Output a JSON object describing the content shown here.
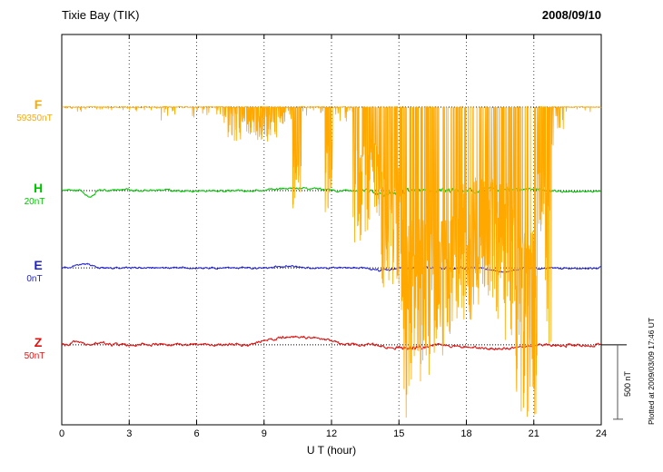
{
  "header": {
    "title": "Tixie Bay (TIK)",
    "date": "2008/09/10"
  },
  "chart_data": {
    "type": "line",
    "title": "Tixie Bay (TIK)",
    "date": "2008/09/10",
    "xlabel": "U T (hour)",
    "x_range": [
      0,
      24
    ],
    "x_ticks": [
      0,
      3,
      6,
      9,
      12,
      15,
      18,
      21,
      24
    ],
    "grid": "vertical-dotted-at-ticks",
    "scale_bar": {
      "label": "500 nT",
      "nT": 500
    },
    "plotted_at": "Plotted at 2009/03/09 17:46 UT",
    "series": [
      {
        "name": "F",
        "label": "F",
        "value_label": "59350nT",
        "color": "#FFA800",
        "baseline_frac": 0.186,
        "style": "spiky",
        "base_jitter": 0.8,
        "segments": [
          [
            0,
            4.4,
            6,
            0.05,
            0
          ],
          [
            4.4,
            5.6,
            20,
            0.07,
            0
          ],
          [
            5.6,
            7.2,
            14,
            0.06,
            0
          ],
          [
            7.2,
            9.0,
            38,
            0.3,
            0
          ],
          [
            9.0,
            9.6,
            40,
            0.35,
            0
          ],
          [
            9.6,
            10.25,
            22,
            0.2,
            0
          ],
          [
            10.25,
            10.65,
            115,
            0.55,
            0.1
          ],
          [
            10.65,
            11.7,
            10,
            0.08,
            0
          ],
          [
            11.7,
            12.05,
            122,
            0.55,
            0.15
          ],
          [
            12.05,
            12.95,
            18,
            0.12,
            0
          ],
          [
            12.95,
            13.65,
            160,
            0.5,
            0.08
          ],
          [
            13.65,
            14.15,
            125,
            0.6,
            0.12
          ],
          [
            14.15,
            15.1,
            200,
            0.65,
            0.15
          ],
          [
            15.1,
            15.55,
            345,
            0.7,
            0.2
          ],
          [
            15.55,
            16.25,
            310,
            0.72,
            0.25
          ],
          [
            16.25,
            17.4,
            300,
            0.75,
            0.25
          ],
          [
            17.4,
            18.25,
            235,
            0.72,
            0.2
          ],
          [
            18.25,
            19.2,
            220,
            0.72,
            0.2
          ],
          [
            19.2,
            20.2,
            265,
            0.72,
            0.15
          ],
          [
            20.2,
            21.15,
            345,
            0.72,
            0.25
          ],
          [
            21.15,
            21.5,
            150,
            0.5,
            0.08
          ],
          [
            21.5,
            21.8,
            265,
            0.28,
            0.05
          ],
          [
            21.8,
            22.4,
            45,
            0.15,
            0
          ],
          [
            22.4,
            24,
            8,
            0.06,
            0
          ]
        ]
      },
      {
        "name": "H",
        "label": "H",
        "value_label": "20nT",
        "color": "#00C400",
        "baseline_frac": 0.4,
        "style": "smooth",
        "base_jitter": 1.3,
        "features": [
          [
            0.9,
            1.6,
            6
          ],
          [
            2.0,
            3.5,
            -1.5
          ],
          [
            8.8,
            12.2,
            -3
          ],
          [
            13.6,
            15.3,
            4
          ],
          [
            18.7,
            19.4,
            -4
          ],
          [
            19.4,
            21.8,
            -2
          ],
          [
            21.8,
            24,
            1
          ]
        ],
        "noise_boost": [
          [
            13.5,
            18.8,
            2.2
          ]
        ]
      },
      {
        "name": "E",
        "label": "E",
        "value_label": "0nT",
        "color": "#2020D0",
        "baseline_frac": 0.598,
        "style": "smooth",
        "base_jitter": 1.1,
        "features": [
          [
            0.25,
            1.7,
            -4
          ],
          [
            9.3,
            10.8,
            -2
          ],
          [
            13.4,
            15.2,
            2.5
          ],
          [
            18.8,
            20.6,
            4
          ],
          [
            21,
            24,
            0.5
          ]
        ],
        "noise_boost": [
          [
            14,
            18.5,
            1.6
          ]
        ]
      },
      {
        "name": "Z",
        "label": "Z",
        "value_label": "50nT",
        "color": "#E01010",
        "baseline_frac": 0.795,
        "style": "smooth",
        "base_jitter": 1.6,
        "features": [
          [
            0.3,
            1.1,
            -4
          ],
          [
            1.2,
            2.2,
            -2.5
          ],
          [
            8.3,
            12.6,
            -9
          ],
          [
            13.8,
            16.8,
            4
          ],
          [
            16.9,
            21.3,
            4
          ],
          [
            21.4,
            24,
            0.5
          ]
        ],
        "noise_boost": [
          [
            14.8,
            16.2,
            1.9
          ]
        ]
      }
    ]
  }
}
